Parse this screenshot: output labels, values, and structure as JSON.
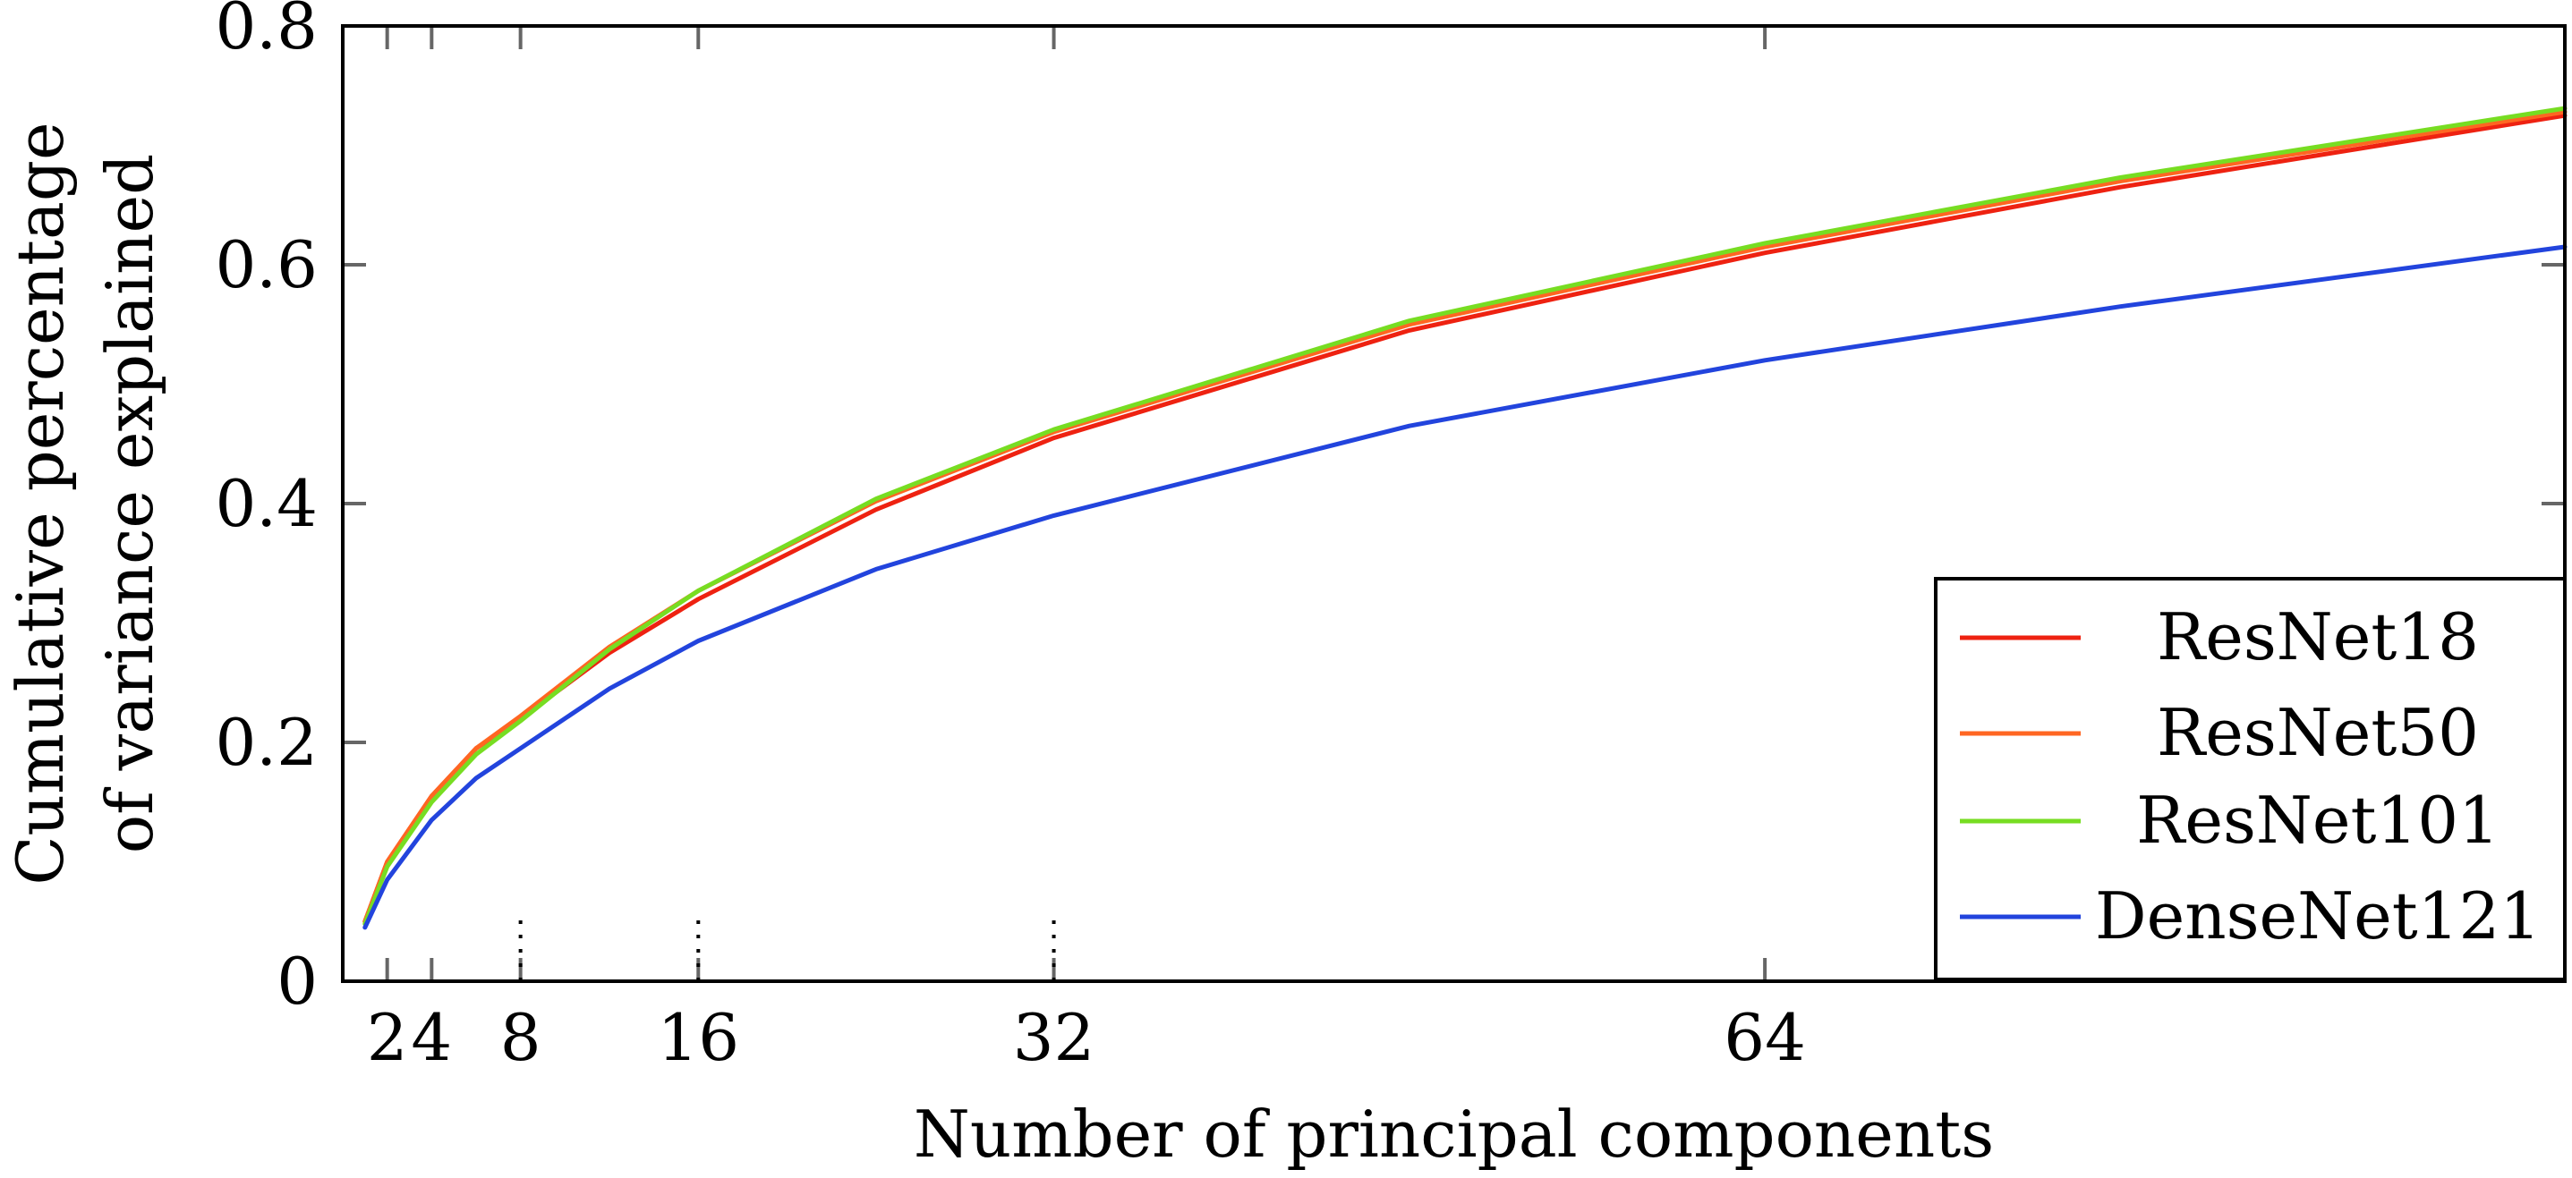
{
  "chart_data": {
    "type": "line",
    "title": "",
    "xlabel": "Number of principal components",
    "ylabel_lines": [
      "Cumulative percentage",
      "of variance explained"
    ],
    "xlim": [
      0,
      100
    ],
    "ylim": [
      0,
      0.8
    ],
    "xticks": [
      2,
      4,
      8,
      16,
      32,
      64
    ],
    "xtick_labels": [
      "2",
      "4",
      "8",
      "16",
      "32",
      "64"
    ],
    "yticks": [
      0,
      0.2,
      0.4,
      0.6,
      0.8
    ],
    "ytick_labels": [
      "0",
      "0.2",
      "0.4",
      "0.6",
      "0.8"
    ],
    "dotted_markers_x": [
      8,
      16,
      32
    ],
    "grid": false,
    "legend_position": "bottom-right",
    "series": [
      {
        "name": "ResNet18",
        "color": "#ee2211",
        "x": [
          1,
          2,
          4,
          6,
          8,
          12,
          16,
          24,
          32,
          48,
          64,
          80,
          100
        ],
        "y": [
          0.05,
          0.1,
          0.155,
          0.195,
          0.22,
          0.275,
          0.32,
          0.395,
          0.455,
          0.545,
          0.61,
          0.665,
          0.725
        ]
      },
      {
        "name": "ResNet50",
        "color": "#ff6622",
        "x": [
          1,
          2,
          4,
          6,
          8,
          12,
          16,
          24,
          32,
          48,
          64,
          80,
          100
        ],
        "y": [
          0.05,
          0.1,
          0.155,
          0.195,
          0.222,
          0.28,
          0.327,
          0.402,
          0.46,
          0.55,
          0.615,
          0.67,
          0.728
        ]
      },
      {
        "name": "ResNet101",
        "color": "#77dd22",
        "x": [
          1,
          2,
          4,
          6,
          8,
          12,
          16,
          24,
          32,
          48,
          64,
          80,
          100
        ],
        "y": [
          0.048,
          0.096,
          0.15,
          0.19,
          0.218,
          0.278,
          0.327,
          0.404,
          0.462,
          0.553,
          0.618,
          0.673,
          0.731
        ]
      },
      {
        "name": "DenseNet121",
        "color": "#2244dd",
        "x": [
          1,
          2,
          4,
          6,
          8,
          12,
          16,
          24,
          32,
          48,
          64,
          80,
          100
        ],
        "y": [
          0.045,
          0.085,
          0.135,
          0.17,
          0.195,
          0.245,
          0.285,
          0.345,
          0.39,
          0.465,
          0.52,
          0.565,
          0.615
        ]
      }
    ]
  }
}
